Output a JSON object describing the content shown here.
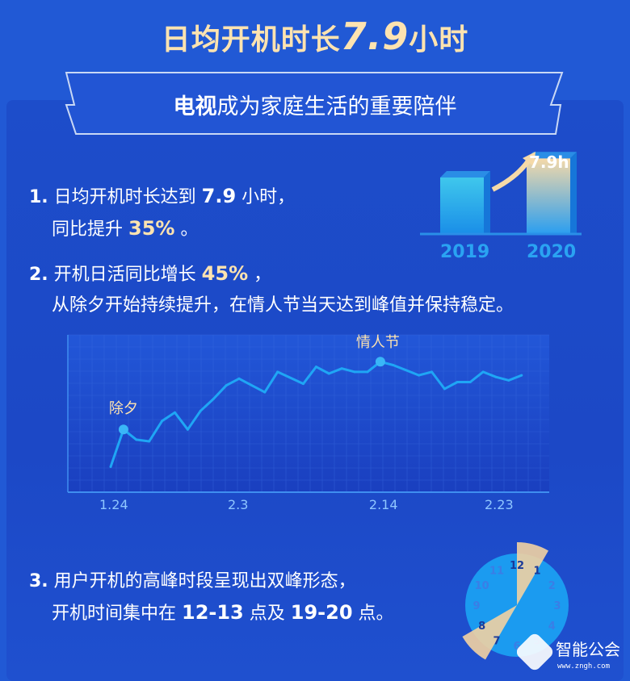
{
  "header": {
    "title_prefix": "日均开机时长",
    "title_number": "7.9",
    "title_suffix": "小时"
  },
  "banner": {
    "bold": "电视",
    "rest": "成为家庭生活的重要陪伴"
  },
  "items": [
    {
      "num": "1.",
      "line1_a": "日均开机时长达到 ",
      "line1_b": "7.9",
      "line1_c": " 小时，",
      "line2_a": "同比提升 ",
      "line2_b": "35%",
      "line2_c": " 。"
    },
    {
      "num": "2.",
      "line1_a": "开机日活同比增长 ",
      "line1_b": "45%",
      "line1_c": " ，",
      "line2": "从除夕开始持续提升，在情人节当天达到峰值并保持稳定。"
    },
    {
      "num": "3.",
      "line1": "用户开机的高峰时段呈现出双峰形态，",
      "line2_a": "开机时间集中在 ",
      "line2_b": "12-13",
      "line2_c": " 点及 ",
      "line2_d": "19-20",
      "line2_e": " 点。"
    }
  ],
  "chart_data": [
    {
      "type": "bar",
      "categories": [
        "2019",
        "2020"
      ],
      "values": [
        5.9,
        7.9
      ],
      "data_labels": [
        "",
        "7.9h"
      ],
      "colors": [
        "#3fc7ec",
        "#f5d9a8"
      ]
    },
    {
      "type": "line",
      "x": [
        "1.24",
        "1.25",
        "1.26",
        "1.27",
        "1.28",
        "1.29",
        "1.30",
        "1.31",
        "2.1",
        "2.2",
        "2.3",
        "2.5",
        "2.6",
        "2.8",
        "2.9",
        "2.10",
        "2.11",
        "2.12",
        "2.13",
        "2.14",
        "2.15",
        "2.17",
        "2.18",
        "2.19",
        "2.20",
        "2.21",
        "2.22",
        "2.23",
        "2.24",
        "2.25"
      ],
      "values": [
        15,
        37,
        31,
        30,
        42,
        47,
        37,
        48,
        55,
        63,
        67,
        59,
        71,
        64,
        74,
        70,
        73,
        71,
        71,
        77,
        75,
        69,
        71,
        61,
        65,
        65,
        71,
        68,
        66,
        69
      ],
      "xticks": [
        "1.24",
        "2.3",
        "2.14",
        "2.23"
      ],
      "annotations": [
        {
          "x": "1.25",
          "text": "除夕"
        },
        {
          "x": "2.14",
          "text": "情人节"
        }
      ],
      "ylim": [
        0,
        100
      ],
      "grid": true,
      "color": "#1fa6f5"
    },
    {
      "type": "pie",
      "title": "",
      "labels": [
        "12",
        "1",
        "2",
        "3",
        "4",
        "5",
        "6",
        "7",
        "8",
        "9",
        "10",
        "11"
      ],
      "highlighted_hours": [
        "12-13",
        "19-20"
      ],
      "colors": {
        "face": "#1b9bf0",
        "highlight": "#f2d2a2"
      }
    }
  ],
  "watermark": {
    "name": "智能公会",
    "url": "www.zngh.com"
  }
}
